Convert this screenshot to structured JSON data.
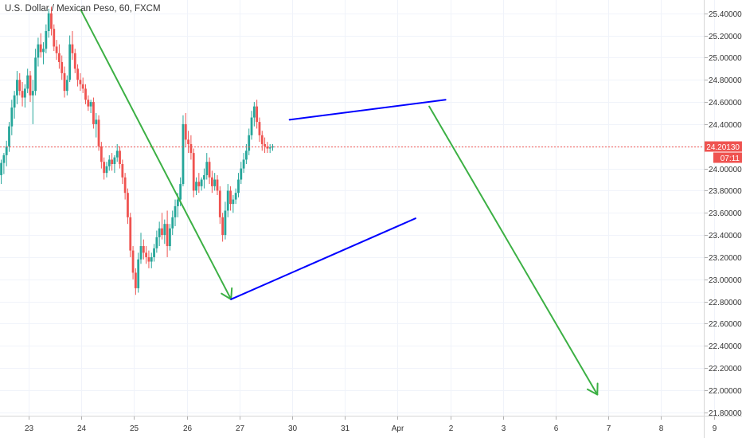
{
  "chart_data": {
    "type": "candlestick",
    "title": "U.S. Dollar / Mexican Peso, 60, FXCM",
    "y_ticks": [
      "21.80000",
      "22.00000",
      "22.20000",
      "22.40000",
      "22.60000",
      "22.80000",
      "23.00000",
      "23.20000",
      "23.40000",
      "23.60000",
      "23.80000",
      "24.00000",
      "24.20000",
      "24.40000",
      "24.60000",
      "24.80000",
      "25.00000",
      "25.20000",
      "25.40000"
    ],
    "y_tick_values": [
      21.8,
      22.0,
      22.2,
      22.4,
      22.6,
      22.8,
      23.0,
      23.2,
      23.4,
      23.6,
      23.8,
      24.0,
      24.2,
      24.4,
      24.6,
      24.8,
      25.0,
      25.2,
      25.4
    ],
    "ylim": [
      21.77,
      25.52
    ],
    "x_ticks": [
      "23",
      "24",
      "25",
      "26",
      "27",
      "30",
      "31",
      "Apr",
      "2",
      "3",
      "6",
      "7",
      "8",
      "9"
    ],
    "last_price": {
      "label": "24.20130",
      "value": 24.2013,
      "color": "#ef5350"
    },
    "countdown": {
      "label": "07:11",
      "color": "#ef5350"
    },
    "colors": {
      "up": "#26a69a",
      "down": "#ef5350",
      "trend": "#0000ff",
      "arrow": "#3cb044"
    },
    "drawings": [
      {
        "name": "downtrend-arrow-1",
        "color": "#3cb044",
        "from": {
          "x": 0.99,
          "y": 25.43
        },
        "to": {
          "x": 3.84,
          "y": 22.82
        },
        "arrowhead": true
      },
      {
        "name": "lower-trendline",
        "color": "#0000ff",
        "from": {
          "x": 3.84,
          "y": 22.82
        },
        "to": {
          "x": 7.34,
          "y": 23.55
        }
      },
      {
        "name": "upper-trendline",
        "color": "#0000ff",
        "from": {
          "x": 4.95,
          "y": 24.44
        },
        "to": {
          "x": 7.91,
          "y": 24.62
        }
      },
      {
        "name": "downtrend-arrow-2",
        "color": "#3cb044",
        "from": {
          "x": 7.6,
          "y": 24.56
        },
        "to": {
          "x": 10.79,
          "y": 21.96
        },
        "arrowhead": true
      }
    ],
    "candles": [
      [
        -0.52,
        23.94,
        24.08,
        23.86,
        24.05
      ],
      [
        -0.47,
        24.05,
        24.14,
        23.95,
        24.12
      ],
      [
        -0.42,
        24.12,
        24.25,
        24.02,
        24.2
      ],
      [
        -0.37,
        24.2,
        24.42,
        24.15,
        24.38
      ],
      [
        -0.32,
        24.38,
        24.62,
        24.3,
        24.55
      ],
      [
        -0.27,
        24.55,
        24.7,
        24.45,
        24.66
      ],
      [
        -0.22,
        24.66,
        24.88,
        24.58,
        24.8
      ],
      [
        -0.17,
        24.8,
        24.86,
        24.66,
        24.7
      ],
      [
        -0.12,
        24.7,
        24.78,
        24.56,
        24.64
      ],
      [
        -0.07,
        24.64,
        24.76,
        24.55,
        24.72
      ],
      [
        -0.02,
        24.72,
        24.9,
        24.68,
        24.84
      ],
      [
        0.03,
        24.84,
        24.88,
        24.6,
        24.66
      ],
      [
        0.08,
        24.66,
        24.8,
        24.4,
        24.7
      ],
      [
        0.13,
        24.7,
        25.08,
        24.66,
        25.0
      ],
      [
        0.18,
        25.0,
        25.18,
        24.92,
        25.12
      ],
      [
        0.23,
        25.12,
        25.22,
        25.0,
        25.05
      ],
      [
        0.28,
        25.05,
        25.14,
        24.94,
        25.08
      ],
      [
        0.33,
        25.08,
        25.3,
        25.04,
        25.24
      ],
      [
        0.38,
        25.24,
        25.44,
        25.18,
        25.4
      ],
      [
        0.43,
        25.4,
        25.46,
        25.2,
        25.26
      ],
      [
        0.48,
        25.26,
        25.3,
        25.06,
        25.1
      ],
      [
        0.53,
        25.1,
        25.16,
        24.98,
        25.04
      ],
      [
        0.58,
        25.04,
        25.12,
        24.9,
        24.96
      ],
      [
        0.63,
        24.96,
        25.02,
        24.8,
        24.86
      ],
      [
        0.68,
        24.86,
        24.92,
        24.64,
        24.7
      ],
      [
        0.73,
        24.7,
        24.84,
        24.66,
        24.8
      ],
      [
        0.78,
        24.8,
        25.2,
        24.78,
        25.12
      ],
      [
        0.83,
        25.12,
        25.24,
        24.98,
        25.04
      ],
      [
        0.88,
        25.04,
        25.08,
        24.86,
        24.9
      ],
      [
        0.93,
        24.9,
        24.94,
        24.74,
        24.8
      ],
      [
        0.98,
        24.8,
        24.86,
        24.7,
        24.76
      ],
      [
        1.03,
        24.76,
        24.82,
        24.68,
        24.72
      ],
      [
        1.08,
        24.72,
        24.76,
        24.58,
        24.62
      ],
      [
        1.13,
        24.62,
        24.66,
        24.52,
        24.56
      ],
      [
        1.18,
        24.56,
        24.62,
        24.5,
        24.6
      ],
      [
        1.23,
        24.6,
        24.64,
        24.36,
        24.4
      ],
      [
        1.28,
        24.4,
        24.5,
        24.28,
        24.44
      ],
      [
        1.33,
        24.44,
        24.48,
        24.16,
        24.2
      ],
      [
        1.38,
        24.2,
        24.24,
        24.0,
        24.06
      ],
      [
        1.43,
        24.06,
        24.1,
        23.9,
        23.96
      ],
      [
        1.48,
        23.96,
        24.06,
        23.92,
        24.02
      ],
      [
        1.53,
        24.02,
        24.12,
        23.98,
        24.08
      ],
      [
        1.58,
        24.08,
        24.14,
        23.98,
        24.04
      ],
      [
        1.63,
        24.04,
        24.12,
        23.96,
        24.1
      ],
      [
        1.68,
        24.1,
        24.22,
        24.06,
        24.16
      ],
      [
        1.73,
        24.16,
        24.2,
        24.0,
        24.04
      ],
      [
        1.78,
        24.04,
        24.08,
        23.86,
        23.92
      ],
      [
        1.83,
        23.92,
        23.96,
        23.72,
        23.78
      ],
      [
        1.88,
        23.78,
        23.82,
        23.5,
        23.56
      ],
      [
        1.93,
        23.56,
        23.6,
        23.2,
        23.26
      ],
      [
        1.98,
        23.26,
        23.3,
        23.0,
        23.06
      ],
      [
        2.03,
        23.06,
        23.1,
        22.86,
        22.92
      ],
      [
        2.08,
        22.92,
        23.24,
        22.88,
        23.18
      ],
      [
        2.13,
        23.18,
        23.42,
        23.14,
        23.3
      ],
      [
        2.18,
        23.3,
        23.36,
        23.18,
        23.24
      ],
      [
        2.23,
        23.24,
        23.3,
        23.14,
        23.2
      ],
      [
        2.28,
        23.2,
        23.26,
        23.1,
        23.16
      ],
      [
        2.33,
        23.16,
        23.24,
        23.1,
        23.2
      ],
      [
        2.38,
        23.2,
        23.32,
        23.16,
        23.28
      ],
      [
        2.43,
        23.28,
        23.44,
        23.24,
        23.38
      ],
      [
        2.48,
        23.38,
        23.52,
        23.3,
        23.46
      ],
      [
        2.53,
        23.46,
        23.6,
        23.36,
        23.4
      ],
      [
        2.58,
        23.4,
        23.54,
        23.32,
        23.5
      ],
      [
        2.63,
        23.5,
        23.62,
        23.2,
        23.3
      ],
      [
        2.68,
        23.3,
        23.5,
        23.26,
        23.46
      ],
      [
        2.73,
        23.46,
        23.62,
        23.4,
        23.56
      ],
      [
        2.78,
        23.56,
        23.72,
        23.48,
        23.66
      ],
      [
        2.83,
        23.66,
        23.78,
        23.56,
        23.72
      ],
      [
        2.88,
        23.72,
        23.92,
        23.66,
        23.86
      ],
      [
        2.93,
        23.86,
        24.48,
        23.84,
        24.4
      ],
      [
        2.98,
        24.4,
        24.5,
        24.2,
        24.26
      ],
      [
        3.03,
        24.26,
        24.34,
        24.14,
        24.22
      ],
      [
        3.08,
        24.22,
        24.3,
        24.08,
        24.14
      ],
      [
        3.13,
        24.14,
        24.18,
        23.74,
        23.8
      ],
      [
        3.18,
        23.8,
        23.92,
        23.76,
        23.88
      ],
      [
        3.23,
        23.88,
        23.96,
        23.78,
        23.84
      ],
      [
        3.28,
        23.84,
        23.92,
        23.8,
        23.9
      ],
      [
        3.33,
        23.9,
        24.0,
        23.82,
        23.94
      ],
      [
        3.38,
        23.94,
        24.14,
        23.9,
        24.06
      ],
      [
        3.43,
        24.06,
        24.1,
        23.86,
        23.92
      ],
      [
        3.48,
        23.92,
        23.98,
        23.78,
        23.84
      ],
      [
        3.53,
        23.84,
        23.96,
        23.8,
        23.9
      ],
      [
        3.58,
        23.9,
        23.94,
        23.76,
        23.8
      ],
      [
        3.63,
        23.8,
        23.84,
        23.5,
        23.56
      ],
      [
        3.68,
        23.56,
        23.6,
        23.34,
        23.4
      ],
      [
        3.73,
        23.4,
        23.7,
        23.36,
        23.62
      ],
      [
        3.78,
        23.62,
        23.86,
        23.56,
        23.8
      ],
      [
        3.83,
        23.8,
        23.84,
        23.62,
        23.68
      ],
      [
        3.88,
        23.68,
        23.76,
        23.6,
        23.72
      ],
      [
        3.93,
        23.72,
        23.82,
        23.68,
        23.78
      ],
      [
        3.98,
        23.78,
        23.96,
        23.74,
        23.9
      ],
      [
        4.03,
        23.9,
        24.06,
        23.86,
        24.0
      ],
      [
        4.08,
        24.0,
        24.14,
        23.96,
        24.08
      ],
      [
        4.13,
        24.08,
        24.22,
        24.04,
        24.16
      ],
      [
        4.18,
        24.16,
        24.36,
        24.12,
        24.3
      ],
      [
        4.23,
        24.3,
        24.52,
        24.26,
        24.46
      ],
      [
        4.28,
        24.46,
        24.6,
        24.38,
        24.56
      ],
      [
        4.33,
        24.56,
        24.62,
        24.36,
        24.42
      ],
      [
        4.38,
        24.42,
        24.46,
        24.24,
        24.3
      ],
      [
        4.43,
        24.3,
        24.34,
        24.16,
        24.22
      ],
      [
        4.48,
        24.22,
        24.28,
        24.14,
        24.2
      ],
      [
        4.53,
        24.2,
        24.24,
        24.14,
        24.18
      ],
      [
        4.58,
        24.18,
        24.22,
        24.14,
        24.19
      ],
      [
        4.63,
        24.19,
        24.22,
        24.16,
        24.2
      ]
    ]
  }
}
